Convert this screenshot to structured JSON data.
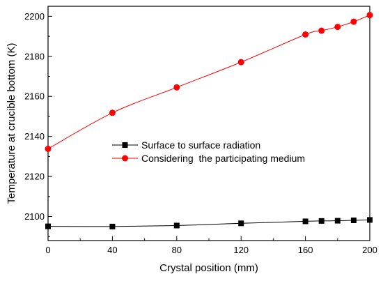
{
  "chart_data": {
    "type": "line",
    "xlabel": "Crystal position (mm)",
    "ylabel": "Temperature at crucible bottom (K)",
    "xlim": [
      0,
      200
    ],
    "ylim": [
      2088,
      2205
    ],
    "x_ticks": [
      0,
      40,
      80,
      120,
      160,
      200
    ],
    "y_ticks": [
      2100,
      2120,
      2140,
      2160,
      2180,
      2200
    ],
    "grid": false,
    "legend_position": "center-left",
    "series": [
      {
        "name": "Surface to surface radiation",
        "marker": "square",
        "color": "#000000",
        "x": [
          0,
          40,
          80,
          120,
          160,
          170,
          180,
          190,
          200
        ],
        "y": [
          2095.1,
          2095.0,
          2095.5,
          2096.6,
          2097.6,
          2097.8,
          2097.9,
          2098.1,
          2098.3
        ]
      },
      {
        "name": "Considering  the participating medium",
        "marker": "circle",
        "color": "#ff0000",
        "x": [
          0,
          40,
          80,
          120,
          160,
          170,
          180,
          190,
          200
        ],
        "y": [
          2133.8,
          2151.8,
          2164.5,
          2177.1,
          2190.9,
          2192.8,
          2194.7,
          2197.3,
          2200.6
        ]
      }
    ]
  }
}
